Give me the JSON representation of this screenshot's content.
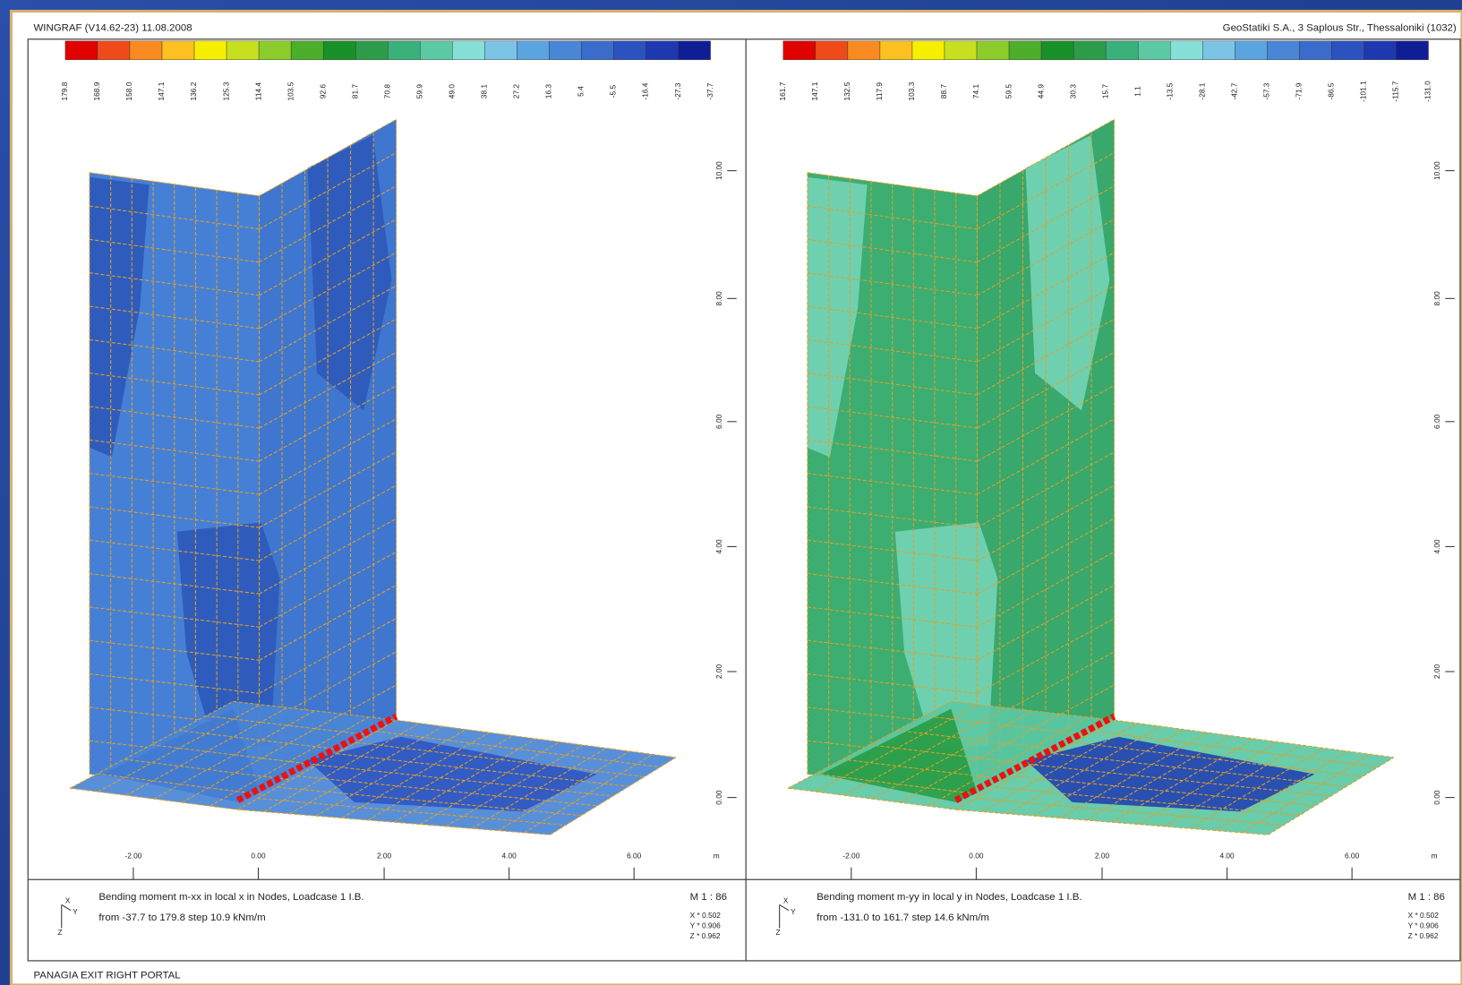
{
  "header": {
    "left": "WINGRAF (V14.62-23) 11.08.2008",
    "right": "GeoStatiki S.A., 3 Saplous Str., Thessaloniki (1032)"
  },
  "legend_colors": [
    "#e00000",
    "#f04a1a",
    "#f88a20",
    "#fcc020",
    "#f6f000",
    "#c6e020",
    "#8ccc2a",
    "#4cae2a",
    "#1a9028",
    "#2c9c4a",
    "#3ab07a",
    "#5cc8a4",
    "#86e0d8",
    "#7cc4e6",
    "#5aa4e0",
    "#4a86d6",
    "#3a6ccc",
    "#2c52c0",
    "#1e38b0",
    "#101e96"
  ],
  "panels": [
    {
      "legend_labels": [
        "179.8",
        "168.9",
        "158.0",
        "147.1",
        "136.2",
        "125.3",
        "114.4",
        "103.5",
        "92.6",
        "81.7",
        "70.8",
        "59.9",
        "49.0",
        "38.1",
        "27.2",
        "16.3",
        "5.4",
        "-5.5",
        "-16.4",
        "-27.3",
        "-37.7"
      ],
      "z_labels": [
        "10.00",
        "8.00",
        "6.00",
        "4.00",
        "2.00",
        "0.00"
      ],
      "x_labels": [
        "-2.00",
        "0.00",
        "2.00",
        "4.00",
        "6.00"
      ],
      "x_unit": "m",
      "caption_line1": "Bending moment m-xx in local x in Nodes, Loadcase 1 I.B.",
      "caption_line2": "from -37.7 to 179.8 step 10.9 kNm/m",
      "scale": "M 1 : 86",
      "factors": [
        "X * 0.502",
        "Y * 0.906",
        "Z * 0.962"
      ],
      "axes": [
        "X",
        "Y",
        "Z"
      ]
    },
    {
      "legend_labels": [
        "161.7",
        "147.1",
        "132.5",
        "117.9",
        "103.3",
        "88.7",
        "74.1",
        "59.5",
        "44.9",
        "30.3",
        "15.7",
        "1.1",
        "-13.5",
        "-28.1",
        "-42.7",
        "-57.3",
        "-71.9",
        "-86.5",
        "-101.1",
        "-115.7",
        "-131.0"
      ],
      "z_labels": [
        "10.00",
        "8.00",
        "6.00",
        "4.00",
        "2.00",
        "0.00"
      ],
      "x_labels": [
        "-2.00",
        "0.00",
        "2.00",
        "4.00",
        "6.00"
      ],
      "x_unit": "m",
      "caption_line1": "Bending moment m-yy in local y in Nodes, Loadcase 1 I.B.",
      "caption_line2": "from -131.0 to 161.7 step 14.6 kNm/m",
      "scale": "M 1 : 86",
      "factors": [
        "X * 0.502",
        "Y * 0.906",
        "Z * 0.962"
      ],
      "axes": [
        "X",
        "Y",
        "Z"
      ]
    }
  ],
  "footer": "PANAGIA EXIT RIGHT PORTAL"
}
